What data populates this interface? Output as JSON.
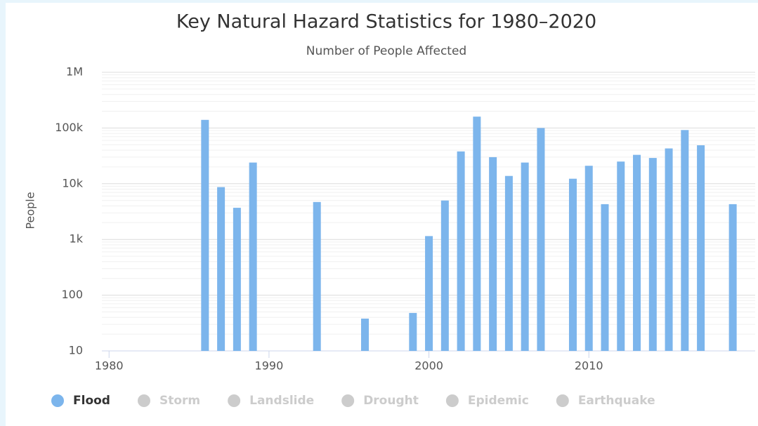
{
  "chart_data": {
    "type": "bar",
    "title": "Key Natural Hazard Statistics for 1980–2020",
    "subtitle": "Number of People Affected",
    "y_label": "People",
    "x": [
      1986,
      1987,
      1988,
      1989,
      1993,
      1996,
      1999,
      2000,
      2001,
      2002,
      2003,
      2004,
      2005,
      2006,
      2007,
      2009,
      2010,
      2011,
      2012,
      2013,
      2014,
      2015,
      2016,
      2017,
      2019
    ],
    "series": [
      {
        "name": "Flood",
        "color": "#7cb5ec",
        "visible": true,
        "values": [
          140000,
          8700,
          3700,
          24000,
          4700,
          38,
          48,
          1150,
          5000,
          38000,
          160000,
          30000,
          13800,
          24000,
          100000,
          12300,
          21000,
          4300,
          25000,
          33000,
          29000,
          43000,
          92000,
          49000,
          4300
        ]
      },
      {
        "name": "Storm",
        "color": "#cccccc",
        "visible": false
      },
      {
        "name": "Landslide",
        "color": "#cccccc",
        "visible": false
      },
      {
        "name": "Drought",
        "color": "#cccccc",
        "visible": false
      },
      {
        "name": "Epidemic",
        "color": "#cccccc",
        "visible": false
      },
      {
        "name": "Earthquake",
        "color": "#cccccc",
        "visible": false
      }
    ],
    "log_scale": true,
    "grid": true,
    "xlim": [
      1979.55,
      2020.4
    ],
    "xticks": [
      1980,
      1990,
      2000,
      2010
    ],
    "ylim": [
      10,
      1000000
    ],
    "yticks": [
      10,
      100,
      {
        "value": 1000,
        "label": "1k"
      },
      {
        "value": 10000,
        "label": "10k"
      },
      {
        "value": 100000,
        "label": "100k"
      },
      {
        "value": 1000000,
        "label": "1M"
      }
    ],
    "legend": "bottom"
  }
}
